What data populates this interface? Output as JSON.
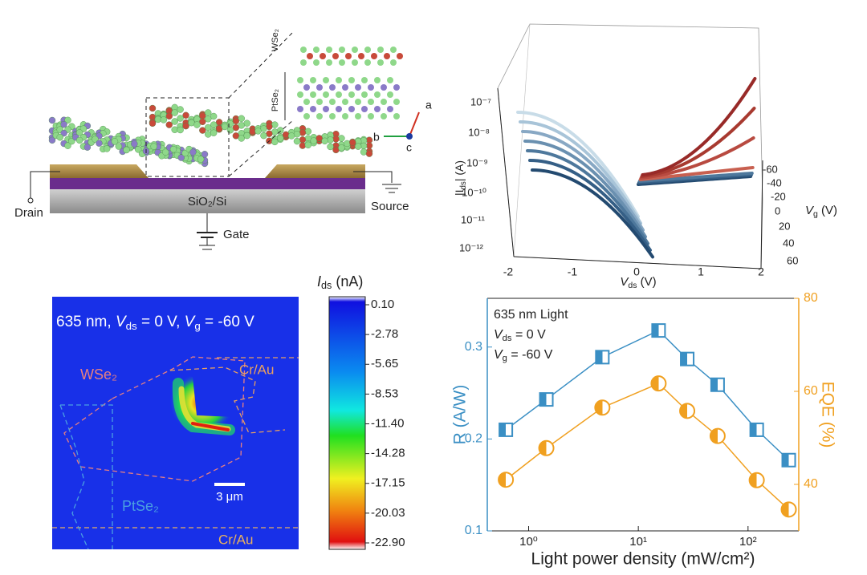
{
  "device": {
    "wse2": "WSe₂",
    "ptse2": "PtSe₂",
    "substrate": "SiO₂/Si",
    "drain": "Drain",
    "source": "Source",
    "gate": "Gate",
    "axis_a": "a",
    "axis_b": "b",
    "axis_c": "c"
  },
  "iv_plot": {
    "yticks": [
      "10⁻⁷",
      "10⁻⁸",
      "10⁻⁹",
      "10⁻¹⁰",
      "10⁻¹¹",
      "10⁻¹²"
    ],
    "xticks": [
      "-2",
      "-1",
      "0",
      "1",
      "2"
    ],
    "xlabel": [
      "V",
      "ds",
      " (V)"
    ],
    "ylabel": [
      "|I",
      "ds",
      "| (A)"
    ],
    "vg_ticks": [
      "-60",
      "-40",
      "-20",
      "0",
      "20",
      "40",
      "60"
    ],
    "vg_label": [
      "V",
      "g",
      " (V)"
    ]
  },
  "map": {
    "condition": [
      "635 nm, ",
      "V",
      "ds",
      " = 0 V, ",
      "V",
      "g",
      " = -60 V"
    ],
    "wse2": "WSe₂",
    "ptse2": "PtSe₂",
    "electrode_top": "Cr/Au",
    "electrode_bottom": "Cr/Au",
    "scale": "3 μm"
  },
  "colorbar": {
    "title": [
      "I",
      "ds",
      " (nA)"
    ],
    "ticks": [
      "0.10",
      "-2.78",
      "-5.65",
      "-8.53",
      "-11.40",
      "-14.28",
      "-17.15",
      "-20.03",
      "-22.90"
    ]
  },
  "chart_data": {
    "type": "line",
    "annotation": {
      "line1": "635 nm Light",
      "vds": [
        "V",
        "ds",
        " = 0 V"
      ],
      "vg": [
        "V",
        "g",
        " = -60 V"
      ]
    },
    "x_label": "Light power density (mW/cm²)",
    "y_label": "R (A/W)",
    "y2_label": "EQE (%)",
    "x": [
      0.62,
      1.45,
      4.7,
      15.3,
      27.9,
      52.8,
      120,
      235
    ],
    "xlim": [
      0.42,
      290
    ],
    "xscale": "log",
    "xticks": [
      {
        "value": 1,
        "label": "10⁰"
      },
      {
        "value": 10,
        "label": "10¹"
      },
      {
        "value": 100,
        "label": "10²"
      }
    ],
    "ylim": [
      0.1,
      0.353
    ],
    "yticks": [
      0.1,
      0.2,
      0.3
    ],
    "y2lim": [
      30,
      80
    ],
    "y2ticks": [
      40,
      60,
      80
    ],
    "series": [
      {
        "name": "R",
        "color": "#3a8fc4",
        "marker": "square",
        "values": [
          0.21,
          0.243,
          0.289,
          0.318,
          0.287,
          0.259,
          0.21,
          0.177
        ]
      },
      {
        "name": "EQE",
        "color": "#f0a020",
        "marker": "circle",
        "axis": "y2",
        "values": [
          41.0,
          47.8,
          56.5,
          61.7,
          55.8,
          50.4,
          40.9,
          34.6
        ]
      }
    ]
  }
}
